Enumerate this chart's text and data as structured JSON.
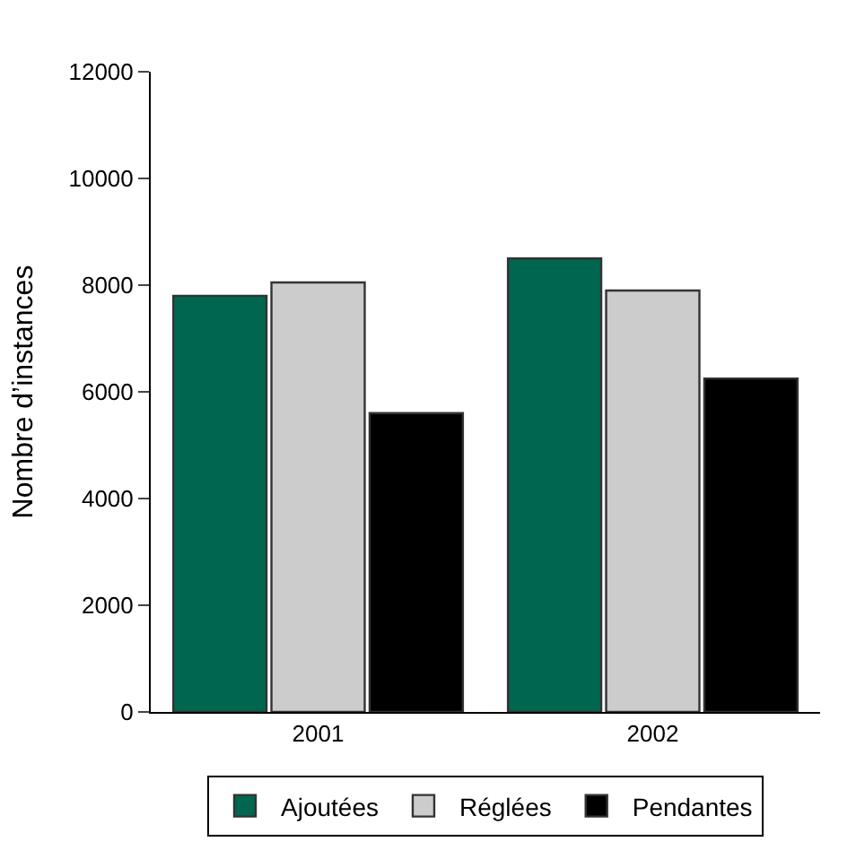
{
  "chart_data": {
    "type": "bar",
    "ylabel": "Nombre d’instances",
    "categories": [
      "2001",
      "2002"
    ],
    "series": [
      {
        "name": "Ajoutées",
        "color": "#00664f",
        "values": [
          7800,
          8500
        ]
      },
      {
        "name": "Réglées",
        "color": "#cccccc",
        "values": [
          8050,
          7900
        ]
      },
      {
        "name": "Pendantes",
        "color": "#000000",
        "values": [
          5600,
          6250
        ]
      }
    ],
    "ylim": [
      0,
      12000
    ],
    "yticks": [
      0,
      2000,
      4000,
      6000,
      8000,
      10000,
      12000
    ],
    "legend": "bottom"
  }
}
